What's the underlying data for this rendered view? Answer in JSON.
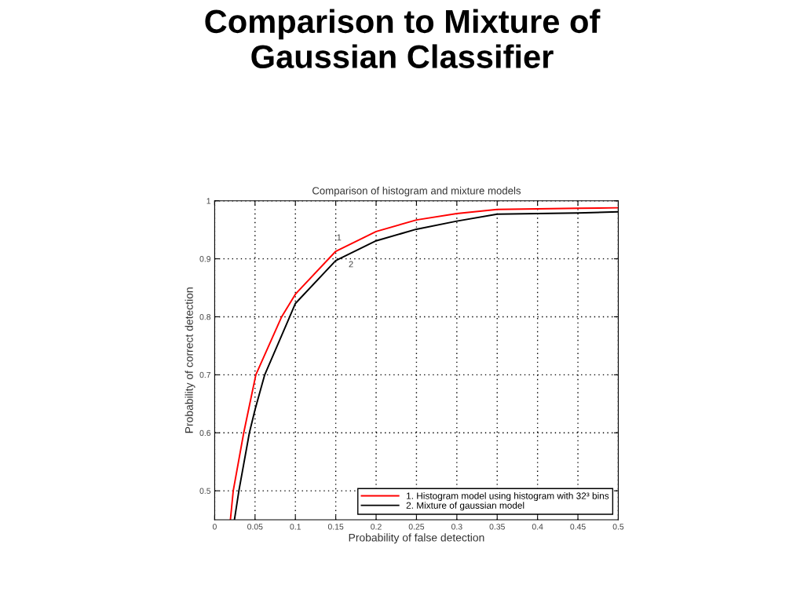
{
  "chart_data": {
    "type": "line",
    "title": "Comparison to Mixture of\nGaussian Classifier",
    "subtitle": "Comparison of histogram and mixture models",
    "xlabel": "Probability of false detection",
    "ylabel": "Probability of correct detection",
    "xlim": [
      0,
      0.5
    ],
    "ylim": [
      0.45,
      1
    ],
    "xticks": [
      0,
      0.05,
      0.1,
      0.15,
      0.2,
      0.25,
      0.3,
      0.35,
      0.4,
      0.45,
      0.5
    ],
    "yticks": [
      0.5,
      0.6,
      0.7,
      0.8,
      0.9,
      1
    ],
    "grid": true,
    "legend": "bottom right",
    "line_style": "solid",
    "series": [
      {
        "name": "1. Histogram model using histogram with 32³ bins",
        "color": "#ff0000",
        "x": [
          0.0195,
          0.023,
          0.036,
          0.051,
          0.083,
          0.1,
          0.15,
          0.2,
          0.25,
          0.3,
          0.35,
          0.4,
          0.45,
          0.5
        ],
        "values": [
          0.45,
          0.5,
          0.6,
          0.7,
          0.8,
          0.839,
          0.913,
          0.947,
          0.967,
          0.978,
          0.985,
          0.986,
          0.987,
          0.988
        ]
      },
      {
        "name": "2. Mixture of gaussian model",
        "color": "#000000",
        "x": [
          0.0245,
          0.03,
          0.043,
          0.05,
          0.062,
          0.093,
          0.1,
          0.15,
          0.2,
          0.25,
          0.3,
          0.35,
          0.4,
          0.45,
          0.5
        ],
        "values": [
          0.45,
          0.5,
          0.6,
          0.64,
          0.7,
          0.8,
          0.823,
          0.897,
          0.931,
          0.951,
          0.965,
          0.977,
          0.978,
          0.979,
          0.981
        ]
      }
    ],
    "annotations": [
      {
        "text": "1",
        "x": 0.15,
        "y": 0.913
      },
      {
        "text": "2",
        "x": 0.15,
        "y": 0.897
      }
    ]
  }
}
